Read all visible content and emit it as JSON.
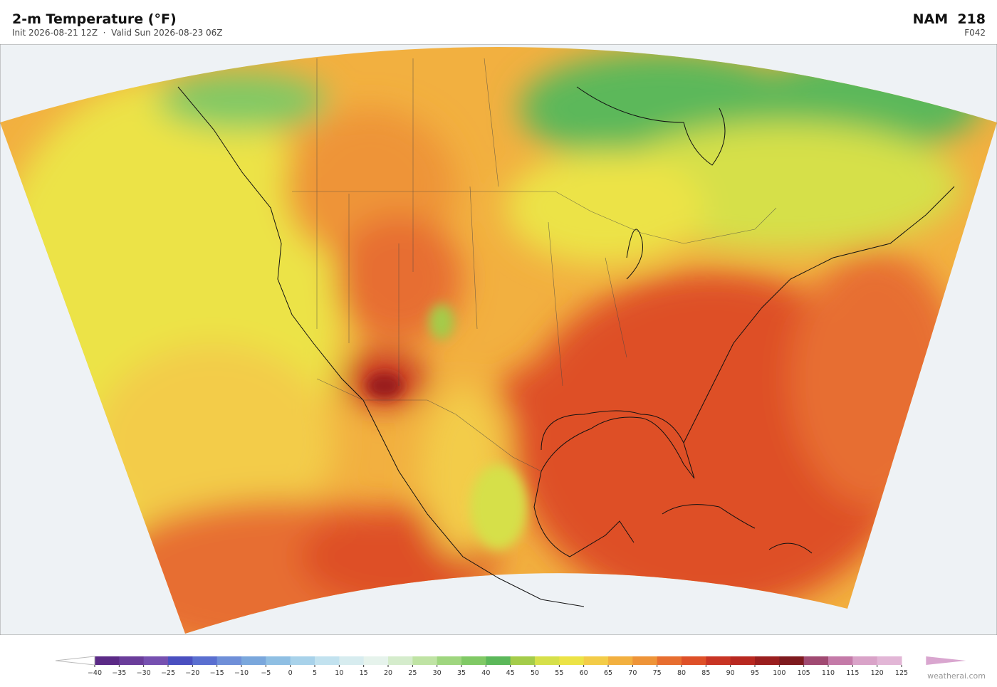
{
  "header": {
    "title": "2-m Temperature  (°F)",
    "subtitle": "Init 2026-08-21 12Z  ·  Valid Sun 2026-08-23 06Z",
    "model": "NAM  218",
    "forecast_hour": "F042"
  },
  "colorbar": {
    "ticks": [
      {
        "value": -40,
        "label": "−40"
      },
      {
        "value": -35,
        "label": "−35"
      },
      {
        "value": -30,
        "label": "−30"
      },
      {
        "value": -25,
        "label": "−25"
      },
      {
        "value": -20,
        "label": "−20"
      },
      {
        "value": -15,
        "label": "−15"
      },
      {
        "value": -10,
        "label": "−10"
      },
      {
        "value": -5,
        "label": "−5"
      },
      0,
      5,
      10,
      15,
      20,
      25,
      30,
      35,
      40,
      45,
      50,
      55,
      60,
      65,
      70,
      75,
      80,
      85,
      90,
      95,
      100,
      105,
      110,
      115,
      120,
      125
    ],
    "colors": [
      "#5b2a86",
      "#6a3d9a",
      "#7650b0",
      "#4a4fc0",
      "#5a6fd0",
      "#6f8fd8",
      "#7aa7dc",
      "#8fbfe3",
      "#a8d2ea",
      "#c2e2ef",
      "#d7ecef",
      "#e6f3ec",
      "#d5eccc",
      "#bfe3a4",
      "#9fd67f",
      "#80c965",
      "#5cb85a",
      "#a4cc4a",
      "#d6e04a",
      "#ece346",
      "#f3cc48",
      "#f2b040",
      "#ee9438",
      "#e76e30",
      "#de5028",
      "#c83424",
      "#b82820",
      "#9a1e1e",
      "#7e1a1e",
      "#a04a72",
      "#c47aa8",
      "#d9a3c8",
      "#e2b6d6"
    ],
    "under_color": "#ffffff",
    "over_color": "#d9a6cf"
  },
  "footer": {
    "credit": "weatherai.com"
  }
}
